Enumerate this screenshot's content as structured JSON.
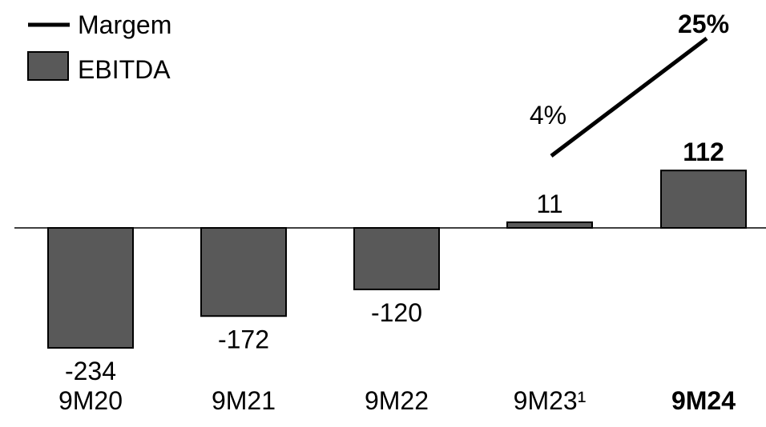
{
  "chart_data": {
    "type": "bar",
    "categories": [
      "9M20",
      "9M21",
      "9M22",
      "9M23¹",
      "9M24"
    ],
    "highlight_category": "9M24",
    "series": [
      {
        "name": "EBITDA",
        "values": [
          -234,
          -172,
          -120,
          11,
          112
        ],
        "labels": [
          "-234",
          "-172",
          "-120",
          "11",
          "112"
        ],
        "color": "#595959"
      },
      {
        "name": "Margem",
        "type": "line",
        "points": [
          {
            "category": "9M23¹",
            "value": 4,
            "label": "4%"
          },
          {
            "category": "9M24",
            "value": 25,
            "label": "25%"
          }
        ],
        "color": "#000000"
      }
    ],
    "legend": {
      "placement": "top-left",
      "entries": [
        {
          "name": "Margem",
          "symbol": "line"
        },
        {
          "name": "EBITDA",
          "symbol": "box"
        }
      ]
    },
    "grid": false,
    "axis_line": "zero-baseline",
    "title": "",
    "xlabel": "",
    "ylabel": ""
  }
}
